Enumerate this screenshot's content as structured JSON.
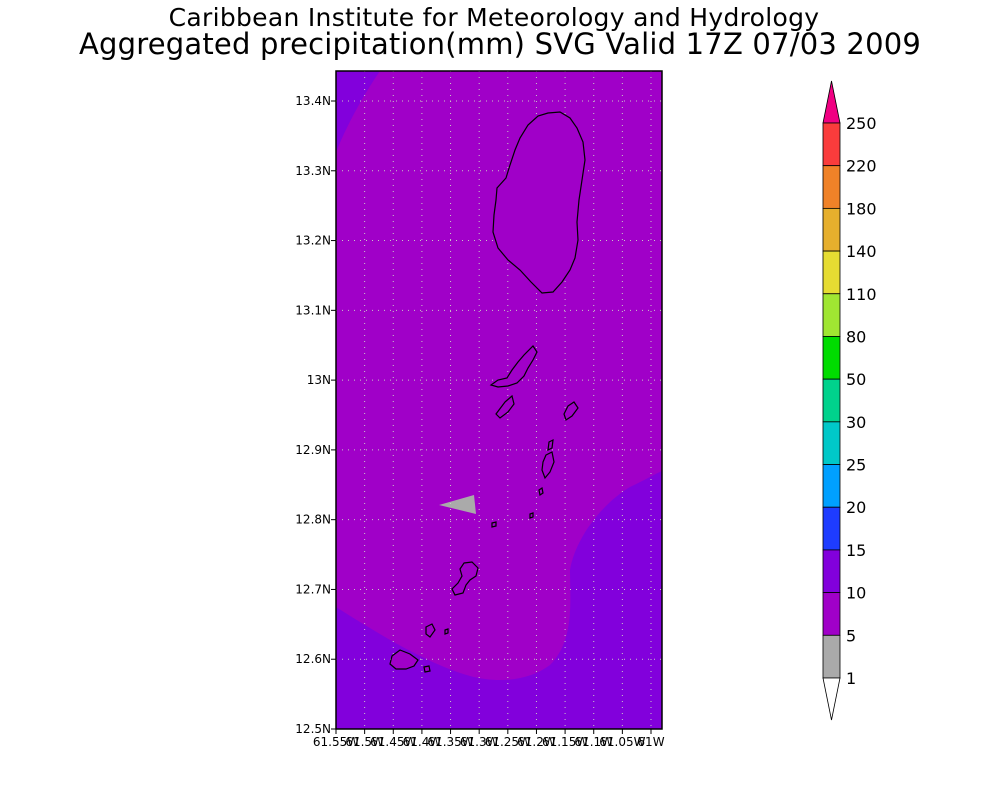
{
  "title": "Caribbean Institute for Meteorology and Hydrology",
  "subtitle": "Aggregated precipitation(mm) SVG Valid 17Z 07/03 2009",
  "map": {
    "lat_labels": [
      "13.4N",
      "13.3N",
      "13.2N",
      "13.1N",
      "13N",
      "12.9N",
      "12.8N",
      "12.7N",
      "12.6N",
      "12.5N"
    ],
    "lon_labels": [
      "61.55W",
      "61.5W",
      "61.45W",
      "61.4W",
      "61.35W",
      "61.3W",
      "61.25W",
      "61.2W",
      "61.15W",
      "61.1W",
      "61.05W",
      "61W"
    ],
    "colors": {
      "field_5_10": "#a000c8",
      "field_10_15": "#8200dc",
      "field_1_5": "#aaaaaa",
      "land_outline": "#000000"
    }
  },
  "colorbar": {
    "labels": [
      "1",
      "5",
      "10",
      "15",
      "20",
      "25",
      "30",
      "50",
      "80",
      "110",
      "140",
      "180",
      "220",
      "250"
    ],
    "bins": [
      {
        "color": "#ffffff"
      },
      {
        "color": "#aaaaaa"
      },
      {
        "color": "#a000c8"
      },
      {
        "color": "#8200dc"
      },
      {
        "color": "#1e3cff"
      },
      {
        "color": "#00a0ff"
      },
      {
        "color": "#00c8c8"
      },
      {
        "color": "#00d28c"
      },
      {
        "color": "#00dc00"
      },
      {
        "color": "#a0e632"
      },
      {
        "color": "#e6dc32"
      },
      {
        "color": "#e6af2d"
      },
      {
        "color": "#f08228"
      },
      {
        "color": "#fa3c3c"
      },
      {
        "color": "#f00082"
      }
    ]
  }
}
